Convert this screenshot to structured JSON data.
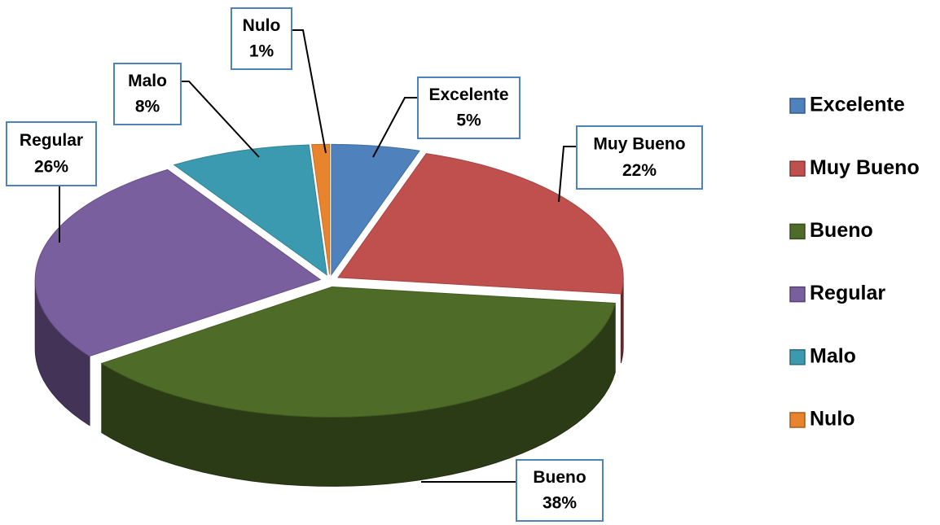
{
  "chart_data": {
    "type": "pie",
    "categories": [
      "Excelente",
      "Muy Bueno",
      "Bueno",
      "Regular",
      "Malo",
      "Nulo"
    ],
    "values": [
      5,
      22,
      38,
      26,
      8,
      1
    ],
    "value_labels": [
      "5%",
      "22%",
      "38%",
      "26%",
      "8%",
      "1%"
    ],
    "colors": [
      "#4f81bd",
      "#c0504d",
      "#4f6b28",
      "#7a5f9e",
      "#3c9ab0",
      "#e8832e"
    ],
    "legend": "right"
  }
}
